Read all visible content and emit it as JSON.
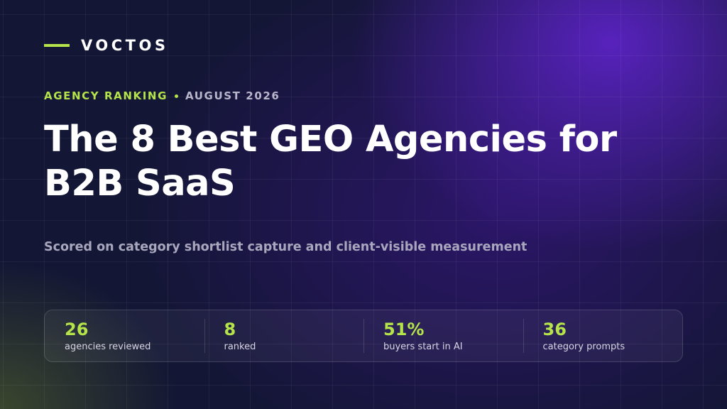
{
  "brand": "VOCTOS",
  "eyebrow": {
    "category": "AGENCY RANKING",
    "date": "AUGUST 2026"
  },
  "title": "The 8 Best GEO Agencies for B2B SaaS",
  "subtitle": "Scored on category shortlist capture and client-visible measurement",
  "stats": [
    {
      "value": "26",
      "label": "agencies reviewed"
    },
    {
      "value": "8",
      "label": "ranked"
    },
    {
      "value": "51%",
      "label": "buyers start in AI"
    },
    {
      "value": "36",
      "label": "category prompts"
    }
  ]
}
